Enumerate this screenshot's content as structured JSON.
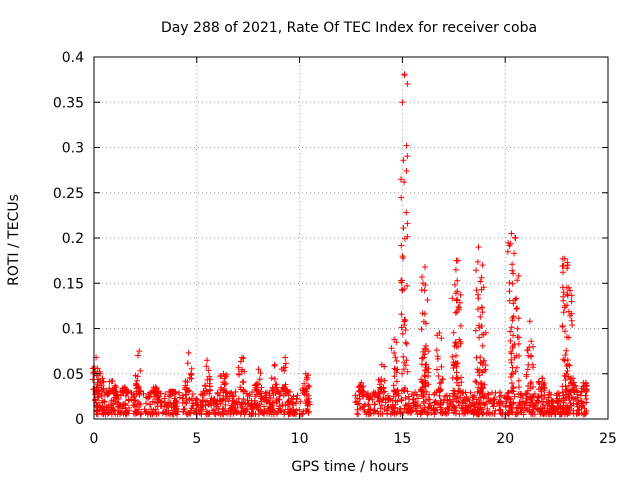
{
  "chart_data": {
    "type": "scatter",
    "title": "Day 288 of 2021, Rate Of TEC Index for receiver coba",
    "xlabel": "GPS time / hours",
    "ylabel": "ROTI / TECUs",
    "xlim": [
      0,
      25
    ],
    "ylim": [
      0,
      0.4
    ],
    "xticks": [
      "0",
      "5",
      "10",
      "15",
      "20",
      "25"
    ],
    "yticks": [
      "0",
      "0.05",
      "0.1",
      "0.15",
      "0.2",
      "0.25",
      "0.3",
      "0.35",
      "0.4"
    ],
    "grid": true,
    "marker": "+",
    "color": "#ff0000",
    "data_gap_hours": [
      10.5,
      12.7
    ],
    "baseline_range": [
      0.005,
      0.03
    ],
    "bursts": [
      {
        "x": 0.1,
        "max": 0.068
      },
      {
        "x": 0.3,
        "max": 0.05
      },
      {
        "x": 0.9,
        "max": 0.042
      },
      {
        "x": 1.5,
        "max": 0.035
      },
      {
        "x": 2.2,
        "max": 0.075
      },
      {
        "x": 3.0,
        "max": 0.035
      },
      {
        "x": 3.8,
        "max": 0.03
      },
      {
        "x": 4.6,
        "max": 0.073
      },
      {
        "x": 5.5,
        "max": 0.065
      },
      {
        "x": 6.3,
        "max": 0.05
      },
      {
        "x": 7.2,
        "max": 0.068
      },
      {
        "x": 8.0,
        "max": 0.055
      },
      {
        "x": 8.8,
        "max": 0.06
      },
      {
        "x": 9.3,
        "max": 0.068
      },
      {
        "x": 10.3,
        "max": 0.05
      },
      {
        "x": 13.0,
        "max": 0.04
      },
      {
        "x": 14.0,
        "max": 0.06
      },
      {
        "x": 14.6,
        "max": 0.088
      },
      {
        "x": 15.1,
        "max": 0.38
      },
      {
        "x": 16.0,
        "max": 0.15
      },
      {
        "x": 16.1,
        "max": 0.168
      },
      {
        "x": 16.8,
        "max": 0.095
      },
      {
        "x": 17.6,
        "max": 0.165
      },
      {
        "x": 17.7,
        "max": 0.175
      },
      {
        "x": 18.7,
        "max": 0.19
      },
      {
        "x": 18.9,
        "max": 0.17
      },
      {
        "x": 20.3,
        "max": 0.205
      },
      {
        "x": 20.5,
        "max": 0.2
      },
      {
        "x": 21.2,
        "max": 0.108
      },
      {
        "x": 21.8,
        "max": 0.045
      },
      {
        "x": 22.9,
        "max": 0.177
      },
      {
        "x": 23.1,
        "max": 0.145
      },
      {
        "x": 23.3,
        "max": 0.045
      },
      {
        "x": 23.8,
        "max": 0.04
      }
    ],
    "outliers": [
      {
        "x": 15.1,
        "y": 0.381
      },
      {
        "x": 15.05,
        "y": 0.286
      },
      {
        "x": 15.05,
        "y": 0.211
      },
      {
        "x": 15.0,
        "y": 0.18
      },
      {
        "x": 22.8,
        "y": 0.177
      },
      {
        "x": 23.05,
        "y": 0.17
      },
      {
        "x": 23.0,
        "y": 0.145
      },
      {
        "x": 22.85,
        "y": 0.14
      },
      {
        "x": 22.9,
        "y": 0.125
      },
      {
        "x": 23.1,
        "y": 0.09
      },
      {
        "x": 23.2,
        "y": 0.045
      }
    ]
  }
}
